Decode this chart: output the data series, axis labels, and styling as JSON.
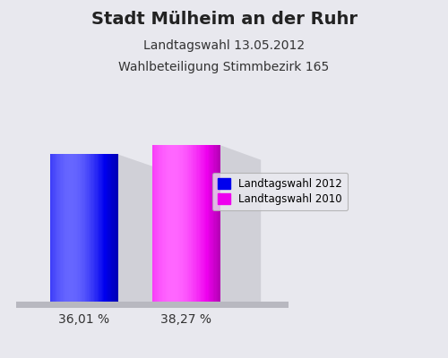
{
  "title": "Stadt Mülheim an der Ruhr",
  "subtitle1": "Landtagswahl 13.05.2012",
  "subtitle2": "Wahlbeteiligung Stimmbezirk 165",
  "values": [
    36.01,
    38.27
  ],
  "labels": [
    "36,01 %",
    "38,27 %"
  ],
  "bar_colors_main": [
    "#0000ee",
    "#ee00ee"
  ],
  "bar_colors_light": [
    "#6666ff",
    "#ff66ff"
  ],
  "bar_colors_dark": [
    "#000088",
    "#880088"
  ],
  "legend_labels": [
    "Landtagswahl 2012",
    "Landtagswahl 2010"
  ],
  "legend_colors": [
    "#0000ee",
    "#ee00ee"
  ],
  "background_color": "#e8e8ee",
  "title_fontsize": 14,
  "subtitle_fontsize": 10,
  "label_fontsize": 10
}
